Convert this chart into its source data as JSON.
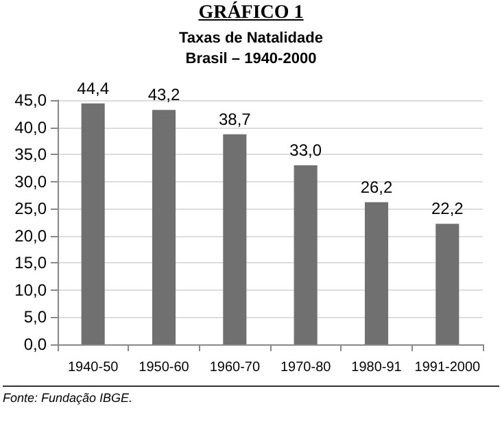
{
  "chart_data": {
    "type": "bar",
    "title": "GRÁFICO 1",
    "subtitle": "Taxas de Natalidade\nBrasil – 1940-2000",
    "categories": [
      "1940-50",
      "1950-60",
      "1960-70",
      "1970-80",
      "1980-91",
      "1991-2000"
    ],
    "values": [
      44.4,
      43.2,
      38.7,
      33.0,
      26.2,
      22.2
    ],
    "value_labels": [
      "44,4",
      "43,2",
      "38,7",
      "33,0",
      "26,2",
      "22,2"
    ],
    "color": "#707070",
    "ylim": [
      0,
      45
    ],
    "yticks": [
      {
        "value": 0,
        "label": "0,0"
      },
      {
        "value": 5,
        "label": "5,0"
      },
      {
        "value": 10,
        "label": "10,0"
      },
      {
        "value": 15,
        "label": "15,0"
      },
      {
        "value": 20,
        "label": "20,0"
      },
      {
        "value": 25,
        "label": "25,0"
      },
      {
        "value": 30,
        "label": "30,0"
      },
      {
        "value": 35,
        "label": "35,0"
      },
      {
        "value": 40,
        "label": "40,0"
      },
      {
        "value": 45,
        "label": "45,0"
      }
    ],
    "grid": "y",
    "annotations": [
      "Fonte: Fundação IBGE."
    ]
  }
}
